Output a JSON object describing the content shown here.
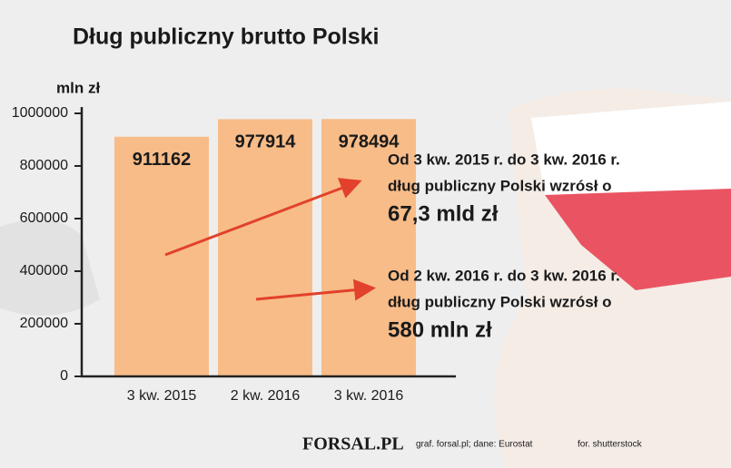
{
  "chart_data": {
    "type": "bar",
    "title": "Dług publiczny brutto Polski",
    "y_axis_label": "mln zł",
    "categories": [
      "3 kw. 2015",
      "2 kw. 2016",
      "3 kw. 2016"
    ],
    "values": [
      911162,
      977914,
      978494
    ],
    "color": "#f8bc88",
    "ylim": [
      0,
      1000000
    ],
    "yticks": [
      0,
      200000,
      400000,
      600000,
      800000,
      1000000
    ],
    "annotations": [
      {
        "lines": [
          "Od 3 kw. 2015 r. do 3 kw. 2016 r.",
          "dług publiczny Polski wzrósł o"
        ],
        "highlight": "67,3 mld zł"
      },
      {
        "lines": [
          "Od 2 kw. 2016 r. do 3 kw. 2016 r.",
          "dług publiczny Polski wzrósł o"
        ],
        "highlight": "580 mln zł"
      }
    ],
    "highlight_color": "#e2412b",
    "logo": "FORSAL.PL",
    "source": "graf. forsal.pl; dane: Eurostat",
    "photo_credit": "for. shutterstock"
  }
}
